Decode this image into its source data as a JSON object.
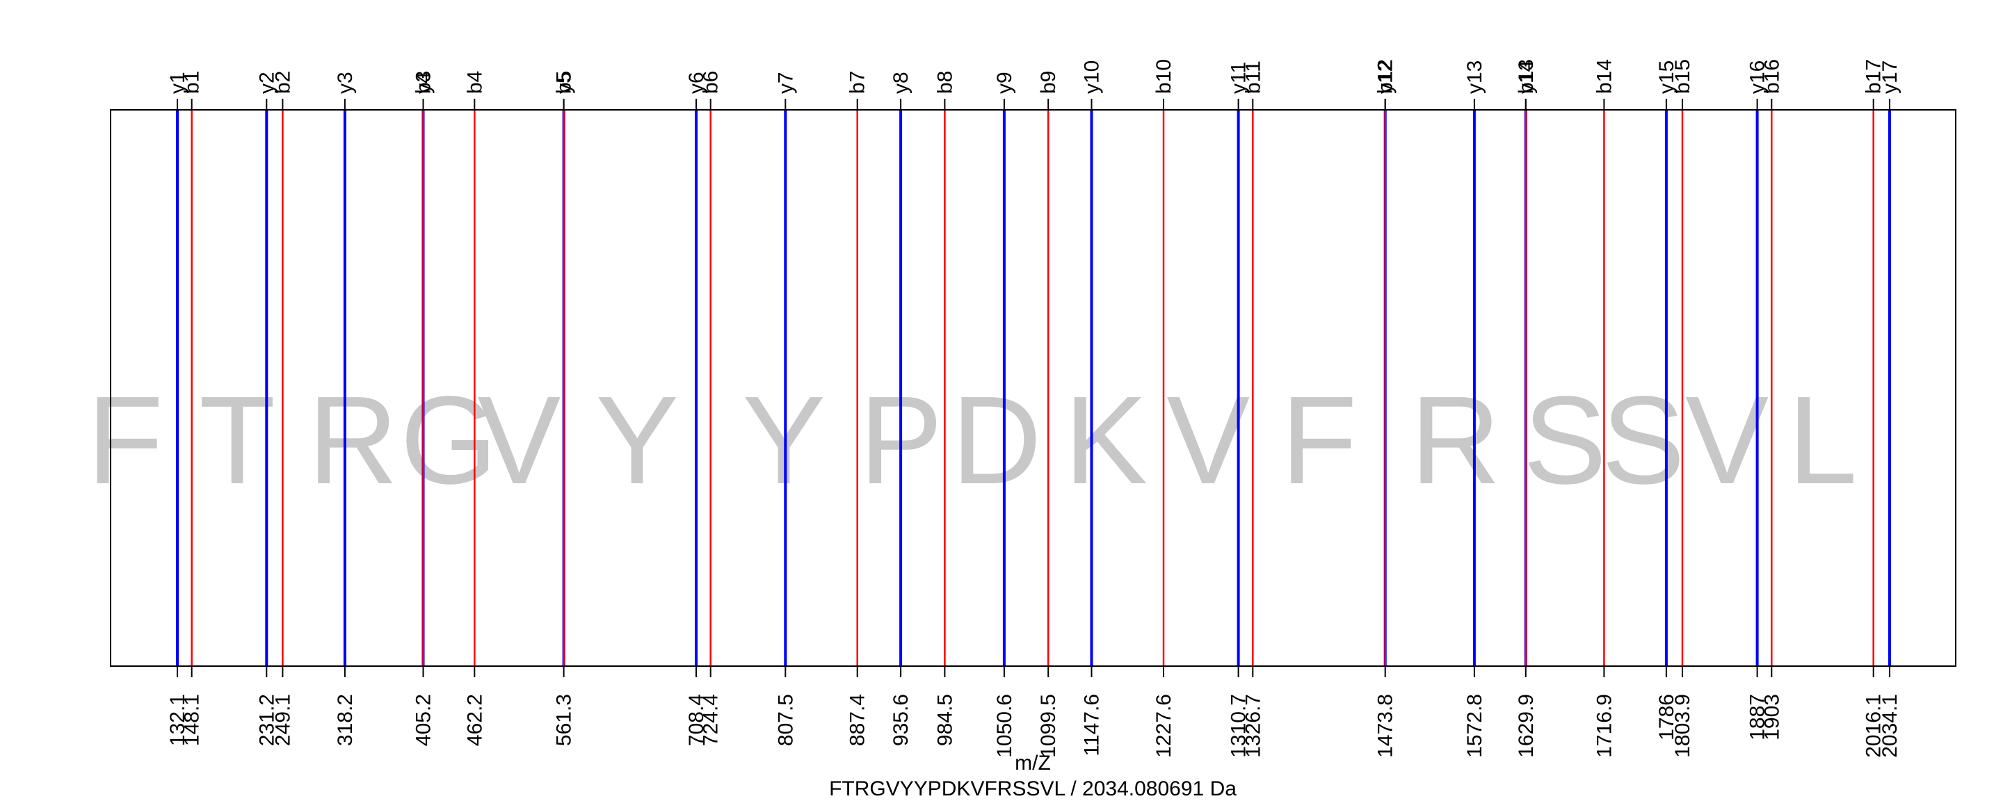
{
  "chart_data": {
    "type": "spectrum",
    "xlabel": "m/Z",
    "subtitle": "FTRGVYYPDKVFRSSVL / 2034.080691 Da",
    "xlim": [
      110,
      2055
    ],
    "series": [
      {
        "ion_type": "y",
        "color": "#0000ff",
        "peaks": [
          {
            "label": "y1",
            "mz": 132.1
          },
          {
            "label": "y2",
            "mz": 231.2
          },
          {
            "label": "y3",
            "mz": 318.2
          },
          {
            "label": "y4",
            "mz": 405.2
          },
          {
            "label": "y5",
            "mz": 561.3
          },
          {
            "label": "y6",
            "mz": 708.4
          },
          {
            "label": "y7",
            "mz": 807.5
          },
          {
            "label": "y8",
            "mz": 935.6
          },
          {
            "label": "y9",
            "mz": 1050.6
          },
          {
            "label": "y10",
            "mz": 1147.6
          },
          {
            "label": "y11",
            "mz": 1310.7
          },
          {
            "label": "y12",
            "mz": 1473.8
          },
          {
            "label": "y13",
            "mz": 1572.8
          },
          {
            "label": "y14",
            "mz": 1629.9
          },
          {
            "label": "y15",
            "mz": 1786
          },
          {
            "label": "y16",
            "mz": 1887
          },
          {
            "label": "y17",
            "mz": 2034.1
          }
        ]
      },
      {
        "ion_type": "b",
        "color": "#ff0000",
        "peaks": [
          {
            "label": "b1",
            "mz": 148.1
          },
          {
            "label": "b2",
            "mz": 249.1
          },
          {
            "label": "b3",
            "mz": 405.2
          },
          {
            "label": "b4",
            "mz": 462.2
          },
          {
            "label": "b5",
            "mz": 561.3
          },
          {
            "label": "b6",
            "mz": 724.4
          },
          {
            "label": "b7",
            "mz": 887.4
          },
          {
            "label": "b8",
            "mz": 984.5
          },
          {
            "label": "b9",
            "mz": 1099.5
          },
          {
            "label": "b10",
            "mz": 1227.6
          },
          {
            "label": "b11",
            "mz": 1326.7
          },
          {
            "label": "b12",
            "mz": 1473.8
          },
          {
            "label": "b13",
            "mz": 1629.9
          },
          {
            "label": "b14",
            "mz": 1716.9
          },
          {
            "label": "b15",
            "mz": 1803.9
          },
          {
            "label": "b16",
            "mz": 1903
          },
          {
            "label": "b17",
            "mz": 2016.1
          }
        ]
      }
    ],
    "tick_labels": [
      {
        "mz": 132.1,
        "text": "132.1"
      },
      {
        "mz": 148.1,
        "text": "148.1"
      },
      {
        "mz": 231.2,
        "text": "231.2"
      },
      {
        "mz": 249.1,
        "text": "249.1"
      },
      {
        "mz": 318.2,
        "text": "318.2"
      },
      {
        "mz": 405.2,
        "text": "405.2"
      },
      {
        "mz": 462.2,
        "text": "462.2"
      },
      {
        "mz": 561.3,
        "text": "561.3"
      },
      {
        "mz": 708.4,
        "text": "708.4"
      },
      {
        "mz": 724.4,
        "text": "724.4"
      },
      {
        "mz": 807.5,
        "text": "807.5"
      },
      {
        "mz": 887.4,
        "text": "887.4"
      },
      {
        "mz": 935.6,
        "text": "935.6"
      },
      {
        "mz": 984.5,
        "text": "984.5"
      },
      {
        "mz": 1050.6,
        "text": "1050.6"
      },
      {
        "mz": 1099.5,
        "text": "1099.5"
      },
      {
        "mz": 1147.6,
        "text": "1147.6"
      },
      {
        "mz": 1227.6,
        "text": "1227.6"
      },
      {
        "mz": 1310.7,
        "text": "1310.7"
      },
      {
        "mz": 1326.7,
        "text": "1326.7"
      },
      {
        "mz": 1473.8,
        "text": "1473.8"
      },
      {
        "mz": 1572.8,
        "text": "1572.8"
      },
      {
        "mz": 1629.9,
        "text": "1629.9"
      },
      {
        "mz": 1716.9,
        "text": "1716.9"
      },
      {
        "mz": 1786,
        "text": "1786"
      },
      {
        "mz": 1803.9,
        "text": "1803.9"
      },
      {
        "mz": 1887,
        "text": "1887"
      },
      {
        "mz": 1903,
        "text": "1903"
      },
      {
        "mz": 2016.1,
        "text": "2016.1"
      },
      {
        "mz": 2034.1,
        "text": "2034.1"
      }
    ],
    "residues": [
      {
        "letter": "F",
        "mz_start": 0,
        "mz_end": 148.1
      },
      {
        "letter": "T",
        "mz_start": 148.1,
        "mz_end": 249.1
      },
      {
        "letter": "R",
        "mz_start": 249.1,
        "mz_end": 405.2
      },
      {
        "letter": "G",
        "mz_start": 405.2,
        "mz_end": 462.2
      },
      {
        "letter": "V",
        "mz_start": 462.2,
        "mz_end": 561.3
      },
      {
        "letter": "Y",
        "mz_start": 561.3,
        "mz_end": 724.4
      },
      {
        "letter": "Y",
        "mz_start": 724.4,
        "mz_end": 887.4
      },
      {
        "letter": "P",
        "mz_start": 887.4,
        "mz_end": 984.5
      },
      {
        "letter": "D",
        "mz_start": 984.5,
        "mz_end": 1099.5
      },
      {
        "letter": "K",
        "mz_start": 1099.5,
        "mz_end": 1227.6
      },
      {
        "letter": "V",
        "mz_start": 1227.6,
        "mz_end": 1326.7
      },
      {
        "letter": "F",
        "mz_start": 1326.7,
        "mz_end": 1473.8
      },
      {
        "letter": "R",
        "mz_start": 1473.8,
        "mz_end": 1629.9
      },
      {
        "letter": "S",
        "mz_start": 1629.9,
        "mz_end": 1716.9
      },
      {
        "letter": "S",
        "mz_start": 1716.9,
        "mz_end": 1803.9
      },
      {
        "letter": "V",
        "mz_start": 1803.9,
        "mz_end": 1903
      },
      {
        "letter": "L",
        "mz_start": 1903,
        "mz_end": 2016.1
      }
    ],
    "residue_color": "#c8c8c8",
    "grid": false,
    "legend": "none"
  }
}
